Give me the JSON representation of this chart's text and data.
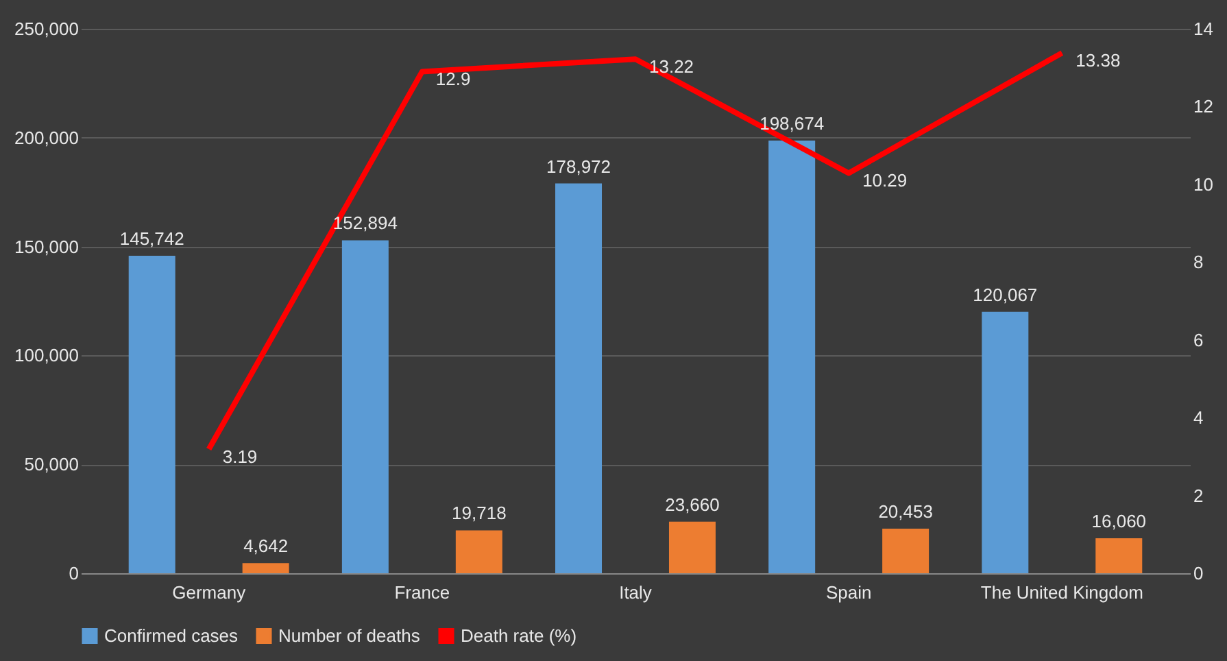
{
  "chart_data": {
    "type": "bar",
    "categories": [
      "Germany",
      "France",
      "Italy",
      "Spain",
      "The United Kingdom"
    ],
    "series": [
      {
        "name": "Confirmed cases",
        "color": "#5b9bd5",
        "values": [
          145742,
          152894,
          178972,
          198674,
          120067
        ],
        "value_labels": [
          "145,742",
          "152,894",
          "178,972",
          "198,674",
          "120,067"
        ]
      },
      {
        "name": "Number of deaths",
        "color": "#ed7d31",
        "values": [
          4642,
          19718,
          23660,
          20453,
          16060
        ],
        "value_labels": [
          "4,642",
          "19,718",
          "23,660",
          "20,453",
          "16,060"
        ]
      },
      {
        "name": "Death rate (%)",
        "color": "#ff0000",
        "type": "line",
        "axis": "y2",
        "values": [
          3.19,
          12.9,
          13.22,
          10.29,
          13.38
        ]
      }
    ],
    "ylim": [
      0,
      250000
    ],
    "yticks": [
      0,
      {
        "value": 50000,
        "label": "50,000"
      },
      {
        "value": 100000,
        "label": "100,000"
      },
      {
        "value": 150000,
        "label": "150,000"
      },
      {
        "value": 200000,
        "label": "200,000"
      },
      {
        "value": 250000,
        "label": "250,000"
      }
    ],
    "y2lim": [
      0,
      14
    ],
    "y2ticks": [
      0,
      2,
      4,
      6,
      8,
      10,
      12,
      14
    ],
    "data_labels": true,
    "legend": "bottom",
    "grid": "y",
    "marker": "none",
    "line_style": "solid"
  }
}
